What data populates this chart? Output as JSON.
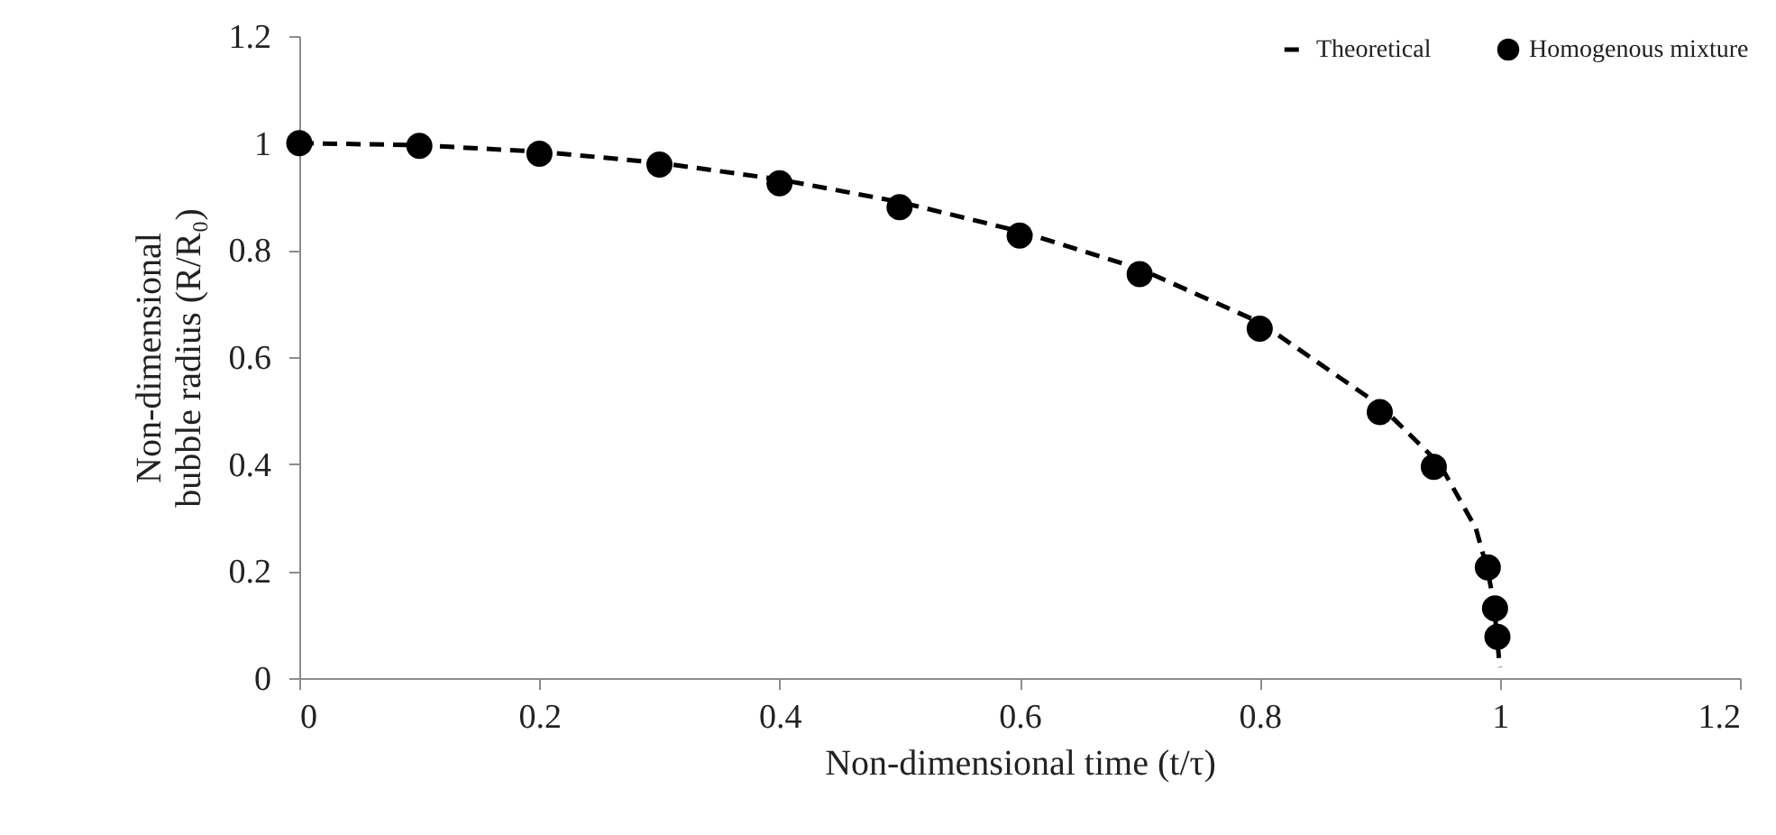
{
  "chart_data": {
    "type": "line",
    "xlabel": "Non-dimensional time (t/τ)",
    "ylabel": "Non-dimensional bubble radius (R/R₀)",
    "xlim": [
      0,
      1.2
    ],
    "ylim": [
      0,
      1.2
    ],
    "xticks": [
      0,
      0.2,
      0.4,
      0.6,
      0.8,
      1,
      1.2
    ],
    "yticks": [
      0,
      0.2,
      0.4,
      0.6,
      0.8,
      1,
      1.2
    ],
    "grid": false,
    "legend": "top right",
    "series": [
      {
        "name": "Theoretical",
        "line_style": "dashed",
        "marker": "none",
        "color": "#000000",
        "x": [
          0,
          0.1,
          0.2,
          0.3,
          0.4,
          0.5,
          0.6,
          0.7,
          0.8,
          0.9,
          0.95,
          0.98,
          0.99,
          0.995,
          1
        ],
        "values": [
          1,
          0.996,
          0.984,
          0.963,
          0.932,
          0.89,
          0.835,
          0.765,
          0.665,
          0.51,
          0.4,
          0.28,
          0.2,
          0.14,
          0.02
        ]
      },
      {
        "name": "Homogenous mixture",
        "type": "scatter",
        "marker": "circle",
        "color": "#000000",
        "x": [
          0,
          0.1,
          0.2,
          0.3,
          0.4,
          0.5,
          0.6,
          0.7,
          0.8,
          0.9,
          0.945,
          0.99,
          0.996,
          0.998
        ],
        "values": [
          1,
          0.995,
          0.98,
          0.96,
          0.925,
          0.88,
          0.827,
          0.755,
          0.653,
          0.497,
          0.395,
          0.207,
          0.13,
          0.077
        ]
      }
    ]
  }
}
